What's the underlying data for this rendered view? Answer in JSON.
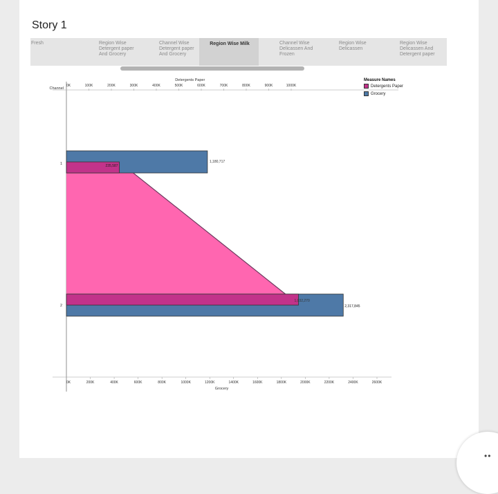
{
  "story": {
    "title": "Story 1",
    "tabs": [
      {
        "label": "Fresh",
        "active": false
      },
      {
        "label": "Region Wise Detergent paper And Grocery",
        "active": false
      },
      {
        "label": "Channel Wise Detergent paper And Grocery",
        "active": false
      },
      {
        "label": "Region Wise Milk",
        "active": true
      },
      {
        "label": "Channel Wise Delicassen And Frozen",
        "active": false
      },
      {
        "label": "Region Wise Delicassen",
        "active": false
      },
      {
        "label": "Region Wise Delicassen And Detergent paper",
        "active": false
      }
    ]
  },
  "chart_data": {
    "type": "bar",
    "row_header": "Channel",
    "categories": [
      "1",
      "2"
    ],
    "series": [
      {
        "name": "Detergents Paper",
        "values": [
          235587,
          1032270
        ],
        "color": "#c2338a",
        "fill_color": "#ff66b0",
        "axis": "top"
      },
      {
        "name": "Grocery",
        "values": [
          1180717,
          2317845
        ],
        "color": "#4e79a7",
        "axis": "bottom"
      }
    ],
    "value_labels": [
      {
        "series": "Grocery",
        "category": "1",
        "text": "1,180,717"
      },
      {
        "series": "Detergents Paper",
        "category": "1",
        "text": "235,587"
      },
      {
        "series": "Detergents Paper",
        "category": "2",
        "text": "1,032,270"
      },
      {
        "series": "Grocery",
        "category": "2",
        "text": "2,317,845"
      }
    ],
    "top_axis": {
      "label": "Detergents Paper",
      "range": [
        0,
        1100000
      ],
      "ticks": [
        {
          "v": 0,
          "t": "0K"
        },
        {
          "v": 100000,
          "t": "100K"
        },
        {
          "v": 200000,
          "t": "200K"
        },
        {
          "v": 300000,
          "t": "300K"
        },
        {
          "v": 400000,
          "t": "400K"
        },
        {
          "v": 500000,
          "t": "500K"
        },
        {
          "v": 600000,
          "t": "600K"
        },
        {
          "v": 700000,
          "t": "700K"
        },
        {
          "v": 800000,
          "t": "800K"
        },
        {
          "v": 900000,
          "t": "900K"
        },
        {
          "v": 1000000,
          "t": "1000K"
        }
      ]
    },
    "bottom_axis": {
      "label": "Grocery",
      "range": [
        0,
        2600000
      ],
      "ticks": [
        {
          "v": 0,
          "t": "0K"
        },
        {
          "v": 200000,
          "t": "200K"
        },
        {
          "v": 400000,
          "t": "400K"
        },
        {
          "v": 600000,
          "t": "600K"
        },
        {
          "v": 800000,
          "t": "800K"
        },
        {
          "v": 1000000,
          "t": "1000K"
        },
        {
          "v": 1200000,
          "t": "1200K"
        },
        {
          "v": 1400000,
          "t": "1400K"
        },
        {
          "v": 1600000,
          "t": "1600K"
        },
        {
          "v": 1800000,
          "t": "1800K"
        },
        {
          "v": 2000000,
          "t": "2000K"
        },
        {
          "v": 2200000,
          "t": "2200K"
        },
        {
          "v": 2400000,
          "t": "2400K"
        },
        {
          "v": 2600000,
          "t": "2600K"
        }
      ]
    },
    "legend": {
      "title": "Measure Names",
      "placement": "right"
    },
    "grid": false
  }
}
